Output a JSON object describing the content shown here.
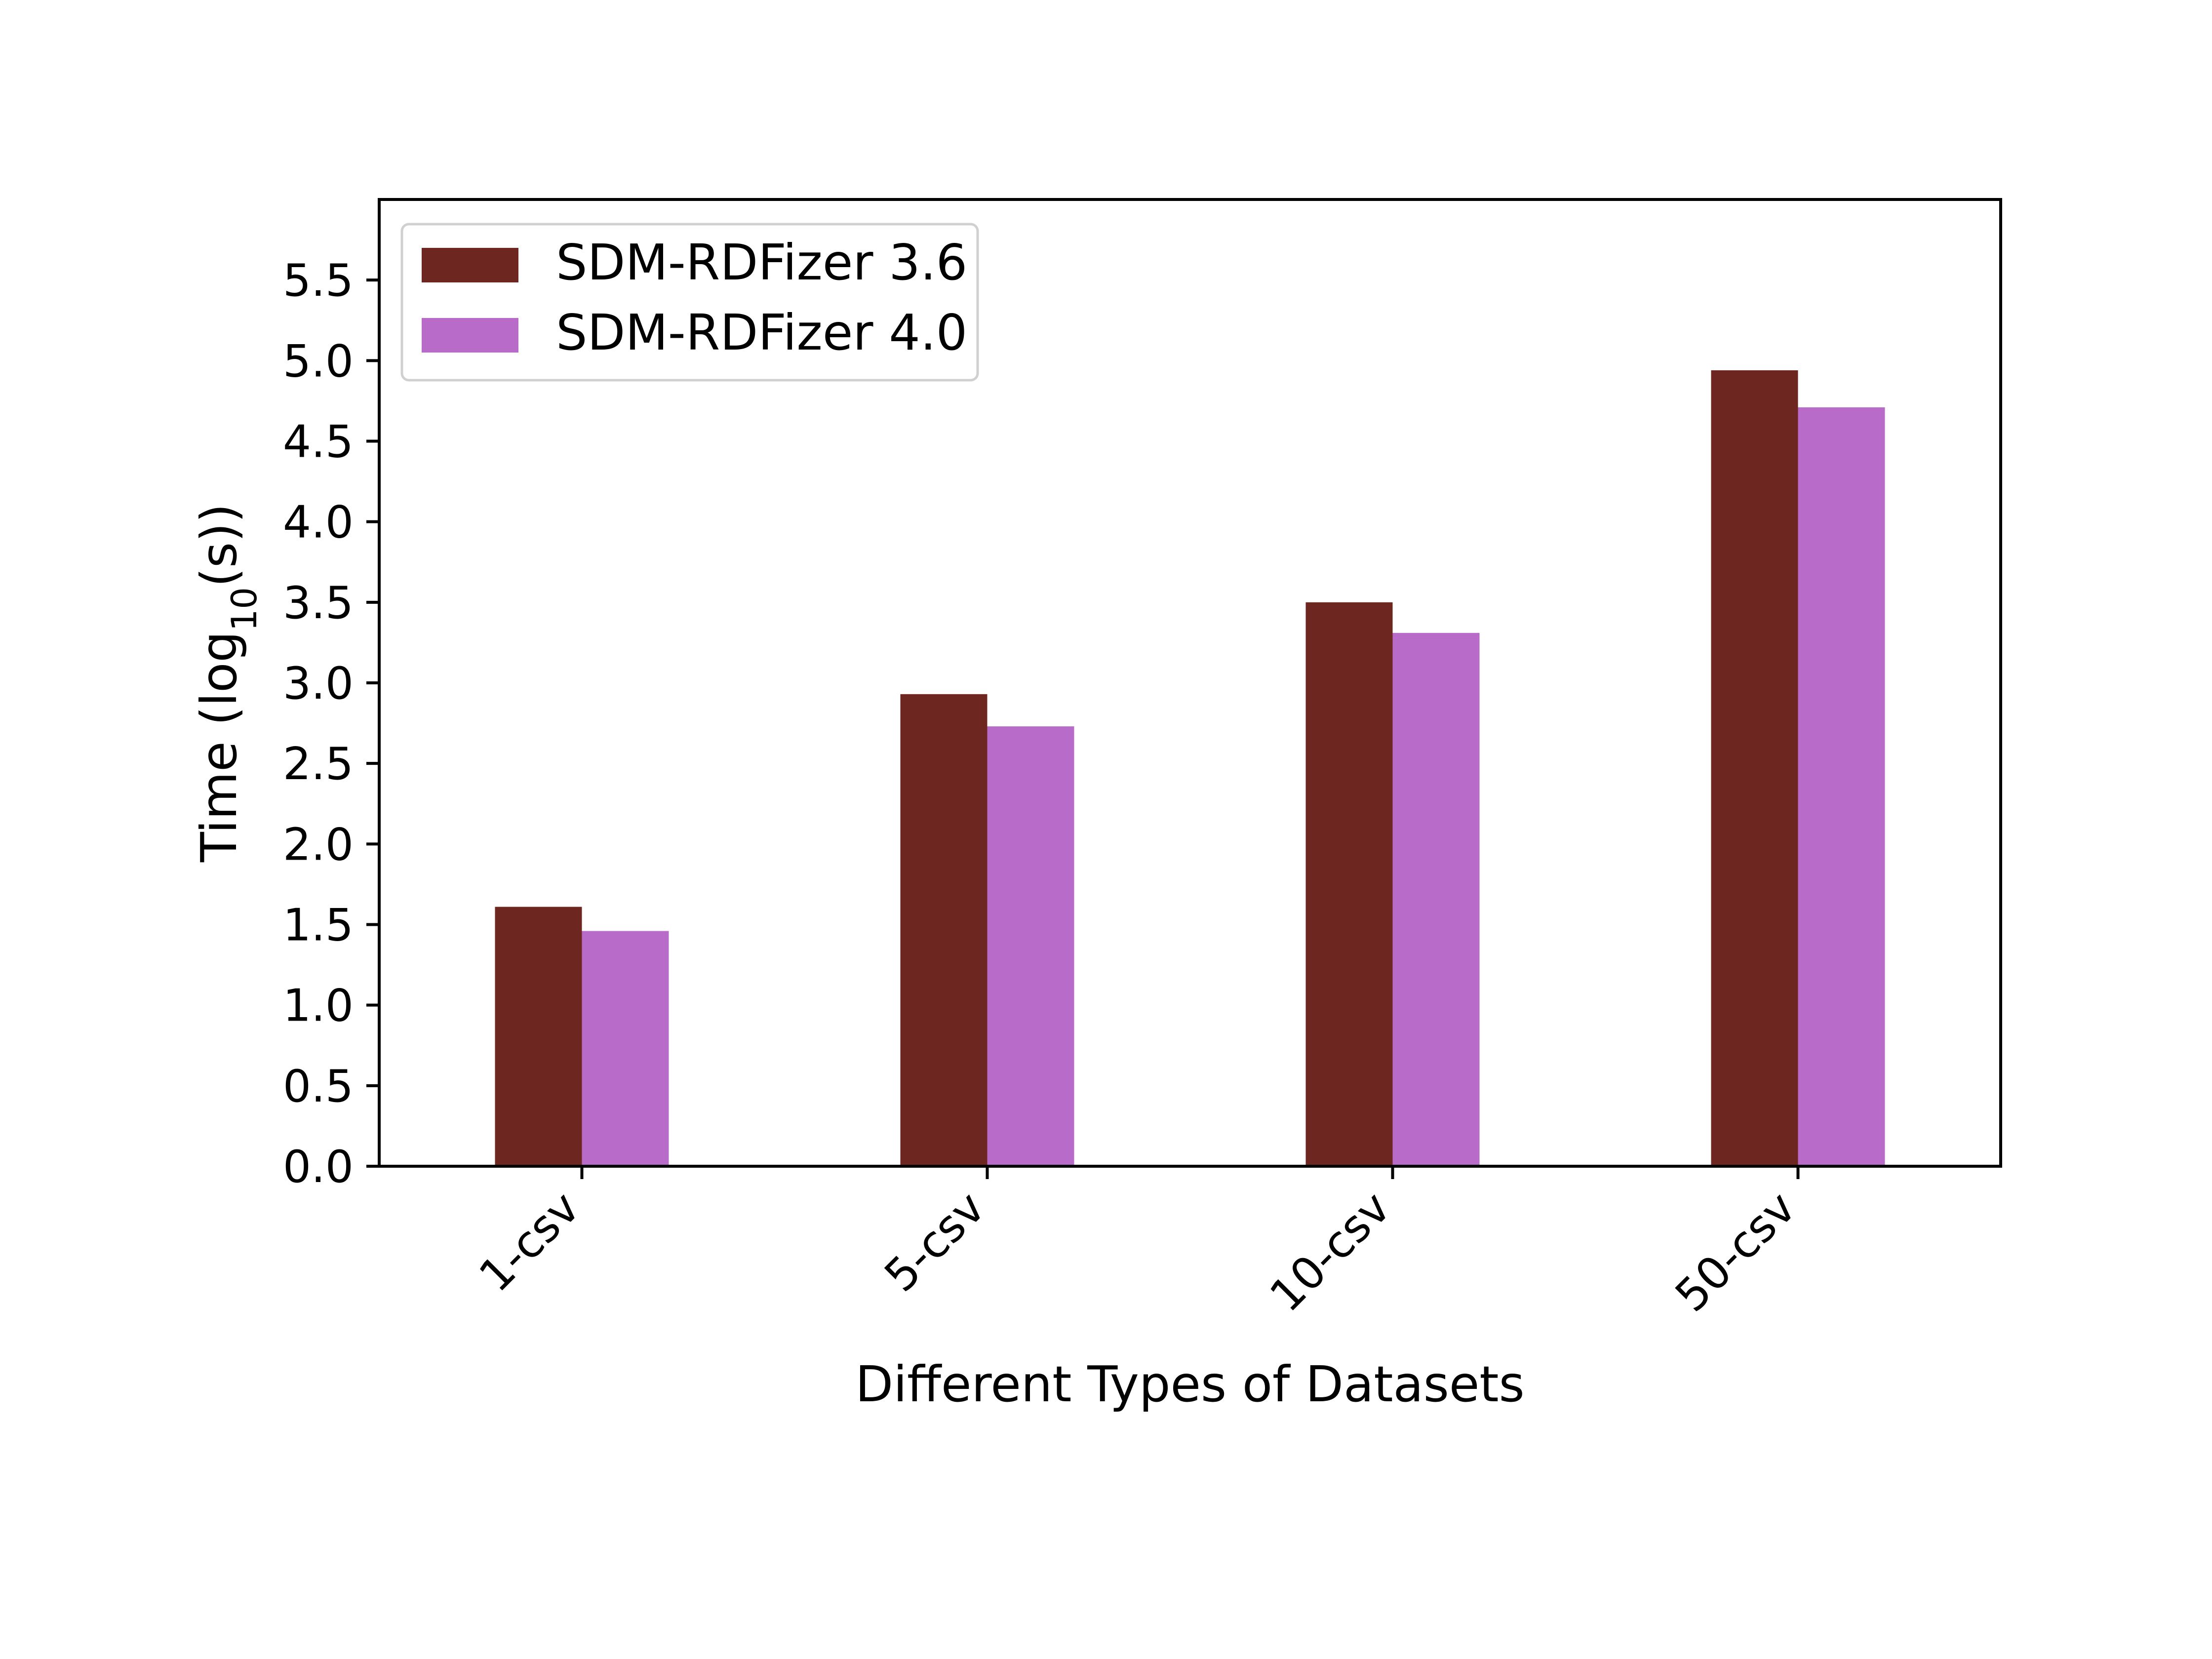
{
  "chart_data": {
    "type": "bar",
    "title": "",
    "xlabel": "Different Types of Datasets",
    "ylabel": {
      "prefix": "Time (log",
      "subscript": "10",
      "suffix": "(s))"
    },
    "categories": [
      "1-csv",
      "5-csv",
      "10-csv",
      "50-csv"
    ],
    "series": [
      {
        "name": "SDM-RDFizer 3.6",
        "color": "#6e2620",
        "values": [
          1.61,
          2.93,
          3.5,
          4.94
        ]
      },
      {
        "name": "SDM-RDFizer 4.0",
        "color": "#b86bc8",
        "values": [
          1.46,
          2.73,
          3.31,
          4.71
        ]
      }
    ],
    "ylim": [
      0,
      6.0
    ],
    "yticks": [
      "0.0",
      "0.5",
      "1.0",
      "1.5",
      "2.0",
      "2.5",
      "3.0",
      "3.5",
      "4.0",
      "4.5",
      "5.0",
      "5.5"
    ],
    "grid": false,
    "legend_position": "top-left"
  }
}
